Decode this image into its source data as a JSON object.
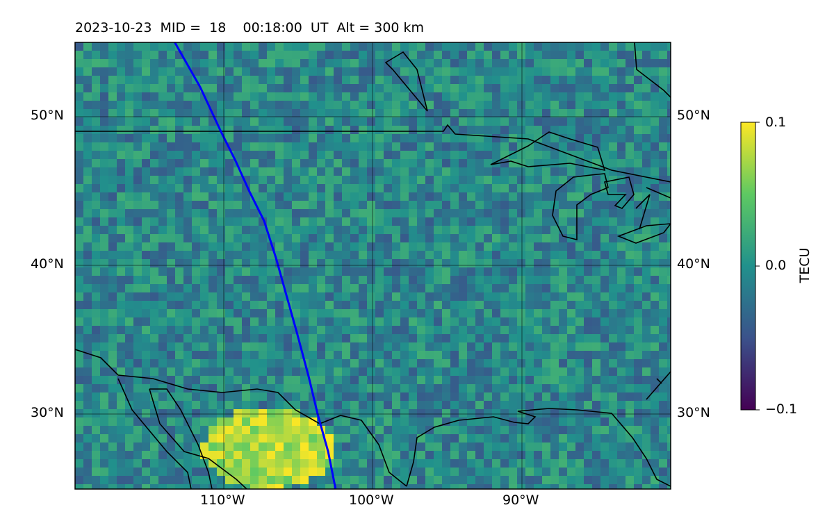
{
  "title": "2023-10-23  MID =  18    00:18:00  UT  Alt = 300 km",
  "chart_data": {
    "type": "heatmap",
    "projection": "PlateCarree",
    "lon_range": [
      -120,
      -80
    ],
    "lat_range": [
      25,
      55
    ],
    "lat_ticks": [
      "50°N",
      "40°N",
      "30°N"
    ],
    "lon_ticks": [
      "110°W",
      "100°W",
      "90°W"
    ],
    "grid": true,
    "colormap": "viridis",
    "colorbar": {
      "label": "TECU",
      "min": -0.1,
      "max": 0.1,
      "ticks": [
        "0.1",
        "0.0",
        "−0.1"
      ]
    },
    "satellite_track": {
      "color": "#0000ff",
      "lon": [
        -113.3,
        -111.6,
        -110.2,
        -109.2,
        -108.3,
        -107.3,
        -106.5,
        -105.8,
        -105.1,
        -104.3,
        -103.7,
        -103.0,
        -102.5
      ],
      "lat": [
        55,
        52,
        49,
        47,
        45,
        43,
        40.5,
        38,
        35.5,
        32.5,
        30,
        27.5,
        25
      ]
    },
    "features": [
      "coastlines",
      "country borders",
      "US-Mexico border",
      "US-Canada border",
      "Great Lakes"
    ]
  }
}
